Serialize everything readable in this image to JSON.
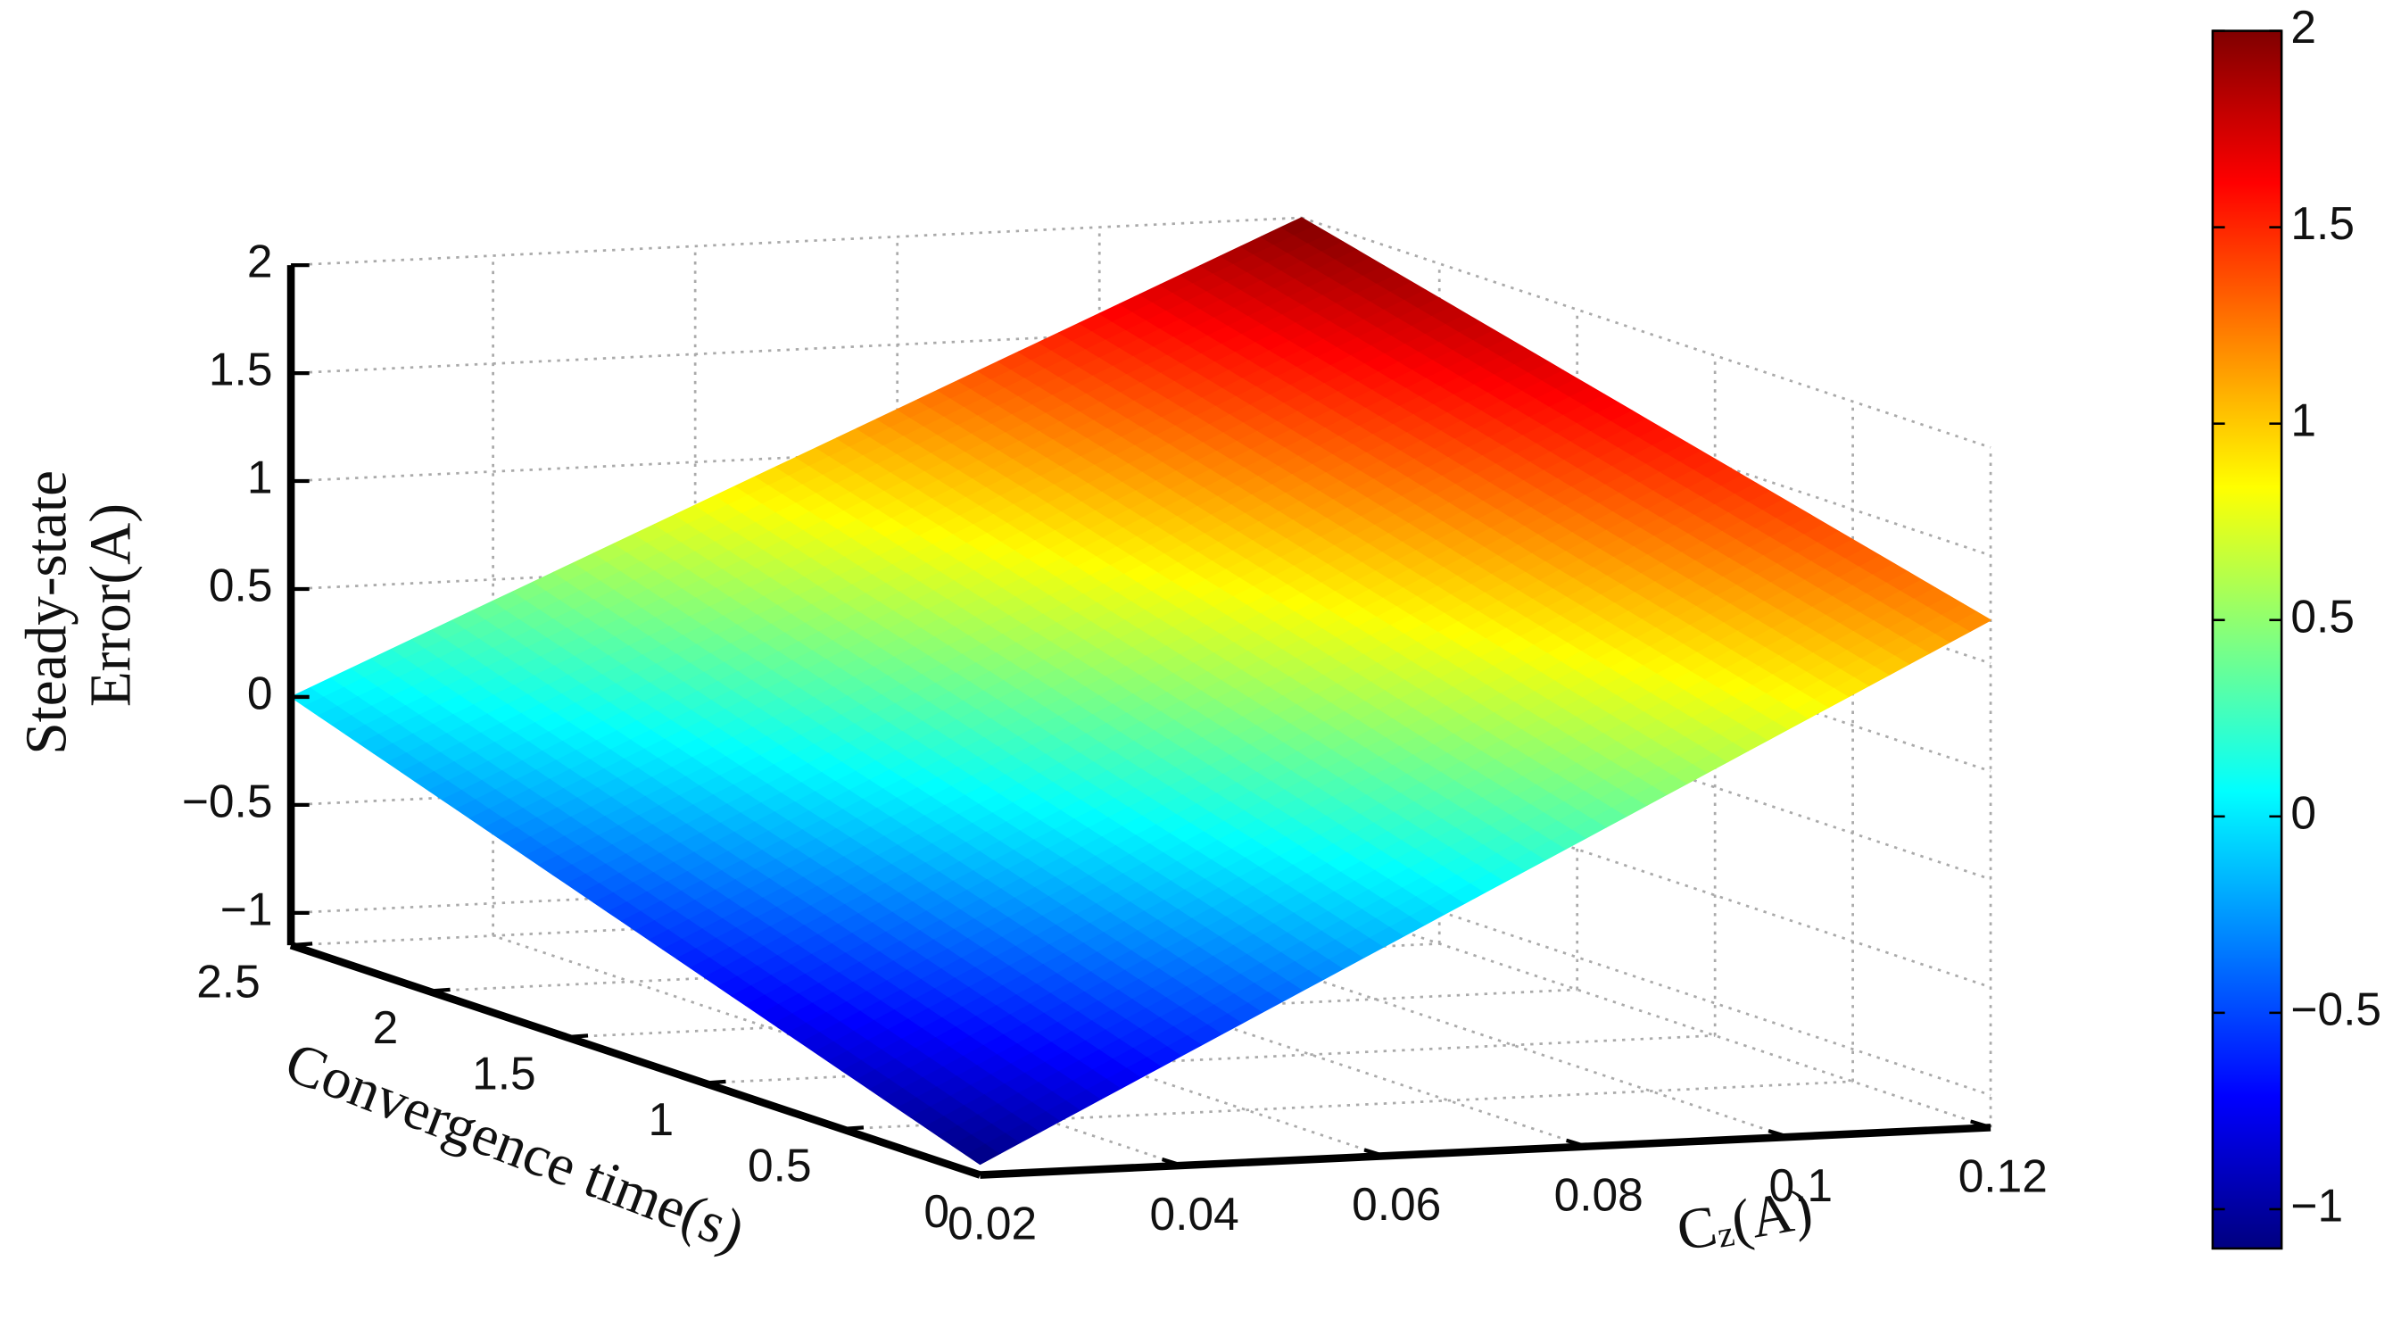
{
  "chart_data": {
    "type": "surface",
    "x": [
      0.02,
      0.04,
      0.06,
      0.08,
      0.1,
      0.12
    ],
    "y": [
      0,
      0.5,
      1,
      1.5,
      2,
      2.5
    ],
    "z": [
      [
        -1.1,
        -0.64,
        -0.18,
        0.28,
        0.74,
        1.2
      ],
      [
        -0.88,
        -0.43,
        0.02,
        0.46,
        0.91,
        1.36
      ],
      [
        -0.66,
        -0.22,
        0.21,
        0.65,
        1.08,
        1.52
      ],
      [
        -0.44,
        -0.02,
        0.41,
        0.83,
        1.26,
        1.68
      ],
      [
        -0.22,
        0.19,
        0.6,
        1.02,
        1.43,
        1.84
      ],
      [
        0,
        0.4,
        0.8,
        1.2,
        1.6,
        2
      ]
    ],
    "xlim": [
      0.02,
      0.12
    ],
    "ylim": [
      0,
      2.5
    ],
    "zlim": [
      -1.15,
      2
    ],
    "xticks": [
      0.02,
      0.04,
      0.06,
      0.08,
      0.1,
      0.12
    ],
    "yticks": [
      0,
      0.5,
      1,
      1.5,
      2,
      2.5
    ],
    "zticks": [
      {
        "value": -1,
        "label": "−1"
      },
      {
        "value": -0.5,
        "label": "−0.5"
      },
      0,
      0.5,
      1,
      1.5,
      2
    ],
    "xlabel": {
      "base": "C",
      "sub": "z",
      "rest": "(A)"
    },
    "ylabel": "Convergence time(s)",
    "zlabel": [
      "Steady-state",
      "Error(A)"
    ],
    "colormap": "jet",
    "grid": true,
    "colorbar": {
      "clim": [
        -1.1,
        2
      ],
      "ticks": [
        {
          "value": -1,
          "label": "−1"
        },
        {
          "value": -0.5,
          "label": "−0.5"
        },
        0,
        0.5,
        1,
        1.5,
        2
      ]
    }
  }
}
